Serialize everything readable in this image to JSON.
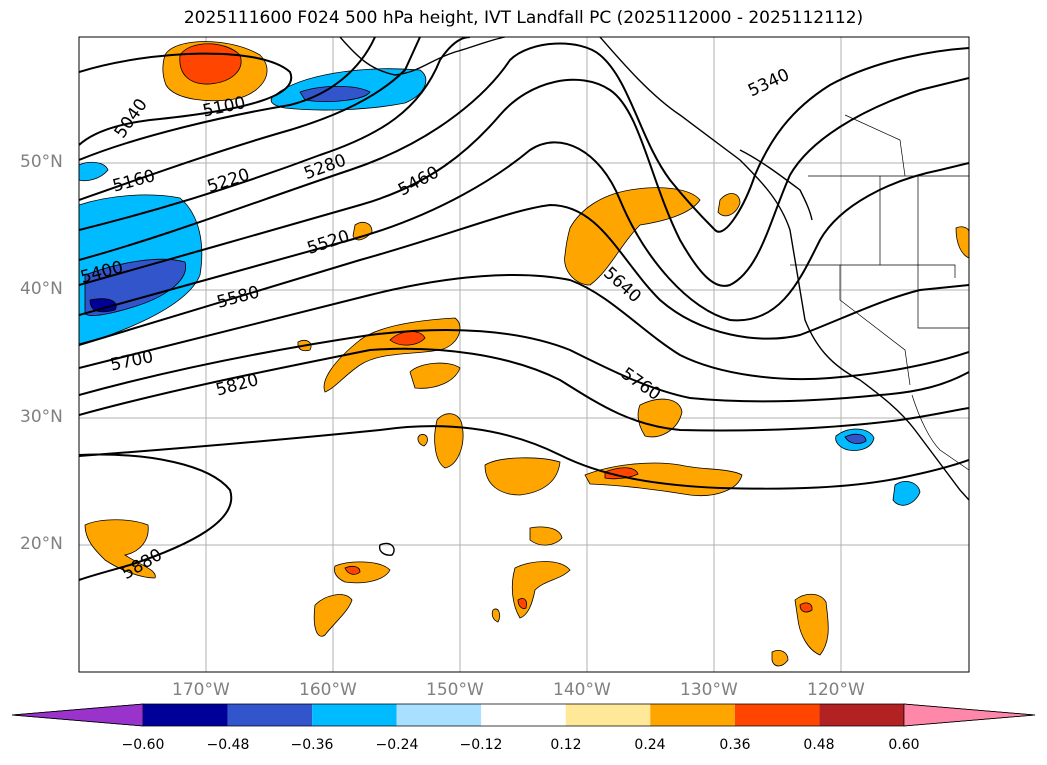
{
  "title": "2025111600 F024 500 hPa height, IVT Landfall PC (2025112000 - 2025112112)",
  "map": {
    "lat_labels": [
      "50°N",
      "40°N",
      "30°N",
      "20°N"
    ],
    "lon_labels": [
      "170°W",
      "160°W",
      "150°W",
      "140°W",
      "130°W",
      "120°W"
    ],
    "contour_labels": [
      "5040",
      "5100",
      "5160",
      "5220",
      "5280",
      "5340",
      "5400",
      "5460",
      "5520",
      "5580",
      "5640",
      "5700",
      "5760",
      "5820",
      "5880"
    ]
  },
  "colorbar": {
    "ticks": [
      "−0.60",
      "−0.48",
      "−0.36",
      "−0.24",
      "−0.12",
      "0.12",
      "0.24",
      "0.36",
      "0.48",
      "0.60"
    ],
    "colors": [
      "#9933cc",
      "#000099",
      "#3355cc",
      "#00bbff",
      "#aae0ff",
      "#ffffff",
      "#ffe999",
      "#ffa500",
      "#ff4500",
      "#b22222",
      "#ff88aa"
    ]
  }
}
